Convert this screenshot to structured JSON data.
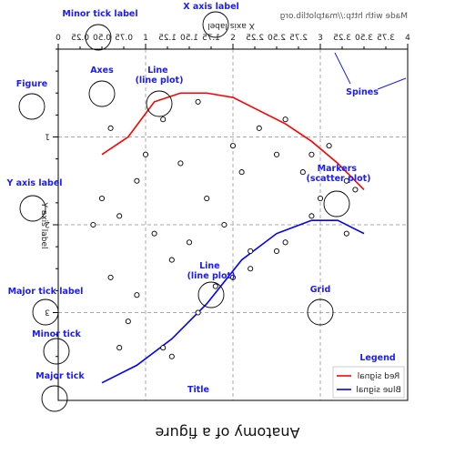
{
  "chart_data": {
    "type": "line",
    "title": "Anatomy of a figure",
    "xlabel": "X axis label",
    "ylabel": "Y axis label",
    "credit": "Made with http://matplotlib.org",
    "xlim": [
      0,
      4
    ],
    "ylim": [
      0,
      4
    ],
    "x_ticks": [
      "0",
      "1",
      "2",
      "3",
      "4"
    ],
    "x_minor_ticks": [
      "0.25",
      "0.50",
      "0.75",
      "1.25",
      "1.50",
      "1.75",
      "2.25",
      "2.50",
      "2.75",
      "3.25",
      "3.50",
      "3.75"
    ],
    "y_ticks": [
      "1",
      "2",
      "3"
    ],
    "grid": true,
    "legend_position": "bottom-right",
    "series": [
      {
        "name": "Red signal",
        "color": "#ff0000",
        "x": [
          0.5,
          0.8,
          1.1,
          1.4,
          1.7,
          2.0,
          2.3,
          2.6,
          2.9,
          3.2,
          3.5
        ],
        "y": [
          1.2,
          1.0,
          0.6,
          0.5,
          0.5,
          0.55,
          0.7,
          0.85,
          1.05,
          1.3,
          1.6
        ]
      },
      {
        "name": "Blue signal",
        "color": "#0000ff",
        "x": [
          0.5,
          0.9,
          1.3,
          1.7,
          2.1,
          2.5,
          2.9,
          3.2,
          3.5
        ],
        "y": [
          3.8,
          3.6,
          3.3,
          2.9,
          2.4,
          2.1,
          1.95,
          1.95,
          2.1
        ]
      },
      {
        "name": "Markers",
        "type": "scatter",
        "x": [
          0.6,
          1.0,
          1.2,
          1.6,
          2.0,
          2.3,
          2.6,
          2.9,
          3.1,
          3.3,
          0.5,
          0.9,
          1.4,
          1.7,
          2.1,
          2.5,
          2.8,
          3.0,
          3.4,
          0.7,
          1.1,
          1.5,
          1.9,
          2.2,
          2.6,
          2.9,
          3.3,
          0.6,
          0.9,
          1.3,
          1.8,
          2.2,
          2.5,
          0.4,
          0.8,
          1.2,
          1.6,
          2.0,
          1.3,
          0.7
        ],
        "y": [
          0.9,
          1.2,
          0.8,
          0.6,
          1.1,
          0.9,
          0.8,
          1.2,
          1.1,
          1.5,
          1.7,
          1.5,
          1.3,
          1.7,
          1.4,
          1.2,
          1.4,
          1.7,
          1.6,
          1.9,
          2.1,
          2.2,
          2.0,
          2.3,
          2.2,
          1.9,
          2.1,
          2.6,
          2.8,
          2.4,
          2.7,
          2.5,
          2.3,
          2.0,
          3.1,
          3.4,
          3.0,
          2.6,
          3.5,
          3.4
        ]
      }
    ]
  },
  "annotations": {
    "minor_tick_label": "Minor tick label",
    "x_axis_label": "X axis label",
    "axes": "Axes",
    "line_plot_top": "Line\n(line plot)",
    "spines": "Spines",
    "figure": "Figure",
    "y_axis_label": "Y axis label",
    "markers": "Markers\n(scatter plot)",
    "line_plot_mid": "Line\n(line plot)",
    "major_tick_label": "Major tick label",
    "minor_tick": "Minor tick",
    "major_tick": "Major tick",
    "grid": "Grid",
    "legend": "Legend",
    "title": "Title"
  }
}
